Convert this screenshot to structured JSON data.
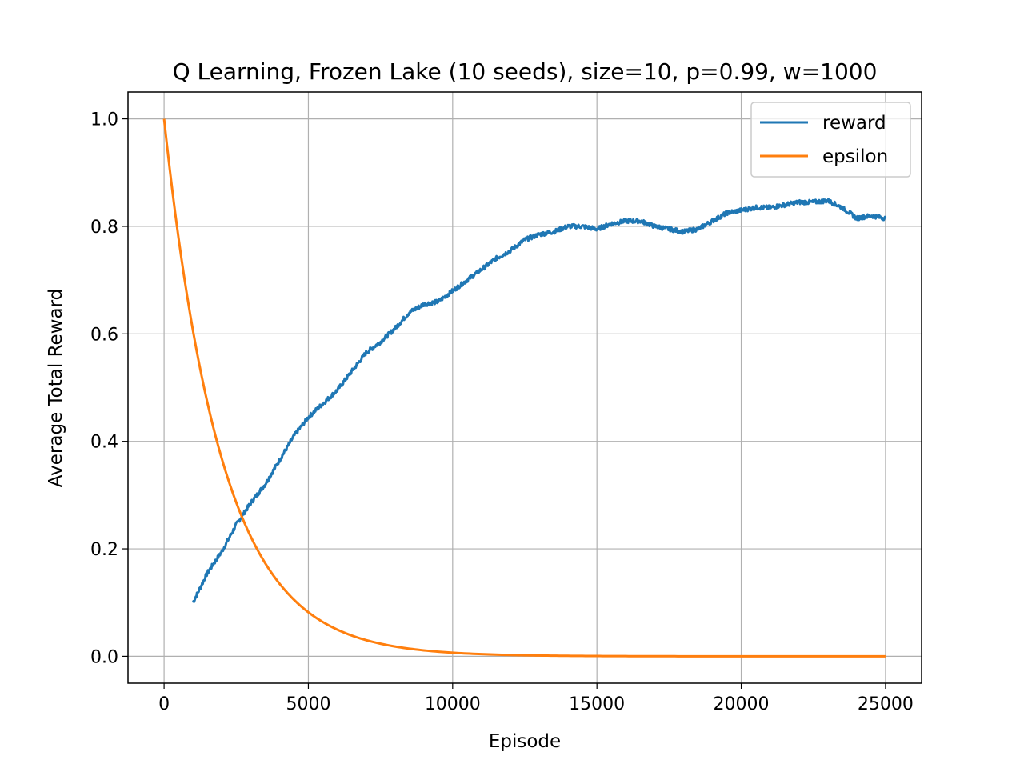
{
  "chart_data": {
    "type": "line",
    "title": "Q Learning, Frozen Lake (10 seeds), size=10, p=0.99, w=1000",
    "xlabel": "Episode",
    "ylabel": "Average Total Reward",
    "xlim": [
      -1250,
      26250
    ],
    "ylim": [
      -0.05,
      1.05
    ],
    "xticks": [
      0,
      5000,
      10000,
      15000,
      20000,
      25000
    ],
    "yticks": [
      0.0,
      0.2,
      0.4,
      0.6,
      0.8,
      1.0
    ],
    "xtick_labels": [
      "0",
      "5000",
      "10000",
      "15000",
      "20000",
      "25000"
    ],
    "ytick_labels": [
      "0.0",
      "0.2",
      "0.4",
      "0.6",
      "0.8",
      "1.0"
    ],
    "grid": true,
    "legend_position": "upper right",
    "series": [
      {
        "name": "reward",
        "color": "#1f77b4",
        "x": [
          1000,
          1500,
          2000,
          2500,
          3000,
          3500,
          4000,
          4500,
          5000,
          5500,
          6000,
          6500,
          7000,
          7500,
          8000,
          8500,
          9000,
          9500,
          10000,
          10500,
          11000,
          11500,
          12000,
          12500,
          13000,
          13500,
          14000,
          14500,
          15000,
          15500,
          16000,
          16500,
          17000,
          17500,
          18000,
          18500,
          19000,
          19500,
          20000,
          20500,
          21000,
          21500,
          22000,
          22500,
          23000,
          23500,
          24000,
          24500,
          25000
        ],
        "y": [
          0.1,
          0.155,
          0.195,
          0.245,
          0.285,
          0.32,
          0.365,
          0.41,
          0.445,
          0.47,
          0.495,
          0.53,
          0.565,
          0.585,
          0.61,
          0.64,
          0.655,
          0.66,
          0.68,
          0.7,
          0.72,
          0.74,
          0.755,
          0.775,
          0.785,
          0.79,
          0.8,
          0.8,
          0.795,
          0.805,
          0.81,
          0.81,
          0.8,
          0.795,
          0.79,
          0.795,
          0.81,
          0.825,
          0.83,
          0.835,
          0.835,
          0.84,
          0.845,
          0.845,
          0.848,
          0.835,
          0.815,
          0.82,
          0.815
        ]
      },
      {
        "name": "epsilon",
        "color": "#ff7f0e",
        "decay_per_episode": 0.9995,
        "x_start": 0,
        "x_end": 25000,
        "y_start": 1.0
      }
    ]
  }
}
